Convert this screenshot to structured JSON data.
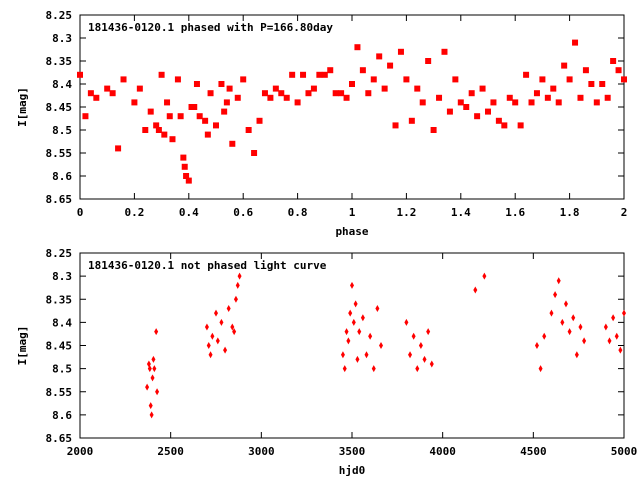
{
  "marker_color": "#ff0000",
  "chart_data": [
    {
      "type": "scatter",
      "title": "181436-0120.1 phased with P=166.80day",
      "xlabel": "phase",
      "ylabel": "I[mag]",
      "xlim": [
        0,
        2
      ],
      "ylim": [
        8.65,
        8.25
      ],
      "y_inverted": true,
      "grid": false,
      "legend": "none",
      "x_ticks": [
        "0",
        "0.2",
        "0.4",
        "0.6",
        "0.8",
        "1",
        "1.2",
        "1.4",
        "1.6",
        "1.8",
        "2"
      ],
      "y_ticks": [
        "8.25",
        "8.3",
        "8.35",
        "8.4",
        "8.45",
        "8.5",
        "8.55",
        "8.6",
        "8.65"
      ],
      "marker": "filled-square",
      "x": [
        0.0,
        0.02,
        0.04,
        0.06,
        0.1,
        0.12,
        0.14,
        0.16,
        0.2,
        0.22,
        0.24,
        0.26,
        0.28,
        0.29,
        0.3,
        0.31,
        0.32,
        0.33,
        0.34,
        0.36,
        0.37,
        0.38,
        0.385,
        0.39,
        0.4,
        0.41,
        0.42,
        0.43,
        0.44,
        0.46,
        0.47,
        0.48,
        0.5,
        0.52,
        0.53,
        0.54,
        0.55,
        0.56,
        0.58,
        0.6,
        0.62,
        0.64,
        0.66,
        0.68,
        0.7,
        0.72,
        0.74,
        0.76,
        0.78,
        0.8,
        0.82,
        0.84,
        0.86,
        0.88,
        0.9,
        0.92,
        0.94,
        0.96,
        0.98,
        1.0,
        1.02,
        1.04,
        1.06,
        1.08,
        1.1,
        1.12,
        1.14,
        1.16,
        1.18,
        1.2,
        1.22,
        1.24,
        1.26,
        1.28,
        1.3,
        1.32,
        1.34,
        1.36,
        1.38,
        1.4,
        1.42,
        1.44,
        1.46,
        1.48,
        1.5,
        1.52,
        1.54,
        1.56,
        1.58,
        1.6,
        1.62,
        1.64,
        1.66,
        1.68,
        1.7,
        1.72,
        1.74,
        1.76,
        1.78,
        1.8,
        1.82,
        1.84,
        1.86,
        1.88,
        1.9,
        1.92,
        1.94,
        1.96,
        1.98,
        2.0
      ],
      "y": [
        8.38,
        8.47,
        8.42,
        8.43,
        8.41,
        8.42,
        8.54,
        8.39,
        8.44,
        8.41,
        8.5,
        8.46,
        8.49,
        8.5,
        8.38,
        8.51,
        8.44,
        8.47,
        8.52,
        8.39,
        8.47,
        8.56,
        8.58,
        8.6,
        8.61,
        8.45,
        8.45,
        8.4,
        8.47,
        8.48,
        8.51,
        8.42,
        8.49,
        8.4,
        8.46,
        8.44,
        8.41,
        8.53,
        8.43,
        8.39,
        8.5,
        8.55,
        8.48,
        8.42,
        8.43,
        8.41,
        8.42,
        8.43,
        8.38,
        8.44,
        8.38,
        8.42,
        8.41,
        8.38,
        8.38,
        8.37,
        8.42,
        8.42,
        8.43,
        8.4,
        8.32,
        8.37,
        8.42,
        8.39,
        8.34,
        8.41,
        8.36,
        8.49,
        8.33,
        8.39,
        8.48,
        8.41,
        8.44,
        8.35,
        8.5,
        8.43,
        8.33,
        8.46,
        8.39,
        8.44,
        8.45,
        8.42,
        8.47,
        8.41,
        8.46,
        8.44,
        8.48,
        8.49,
        8.43,
        8.44,
        8.49,
        8.38,
        8.44,
        8.42,
        8.39,
        8.43,
        8.41,
        8.44,
        8.36,
        8.39,
        8.31,
        8.43,
        8.37,
        8.4,
        8.44,
        8.4,
        8.43,
        8.35,
        8.37,
        8.39
      ]
    },
    {
      "type": "scatter",
      "title": "181436-0120.1 not phased light curve",
      "xlabel": "hjd0",
      "ylabel": "I[mag]",
      "xlim": [
        2000,
        5000
      ],
      "ylim": [
        8.65,
        8.25
      ],
      "y_inverted": true,
      "grid": false,
      "legend": "none",
      "x_ticks": [
        "2000",
        "2500",
        "3000",
        "3500",
        "4000",
        "4500",
        "5000"
      ],
      "y_ticks": [
        "8.25",
        "8.3",
        "8.35",
        "8.4",
        "8.45",
        "8.5",
        "8.55",
        "8.6",
        "8.65"
      ],
      "marker": "filled-diamond",
      "x": [
        2370,
        2380,
        2385,
        2390,
        2395,
        2400,
        2405,
        2410,
        2420,
        2425,
        2700,
        2710,
        2720,
        2730,
        2750,
        2760,
        2780,
        2800,
        2820,
        2840,
        2850,
        2860,
        2870,
        2880,
        3450,
        3460,
        3470,
        3480,
        3490,
        3500,
        3510,
        3520,
        3530,
        3540,
        3560,
        3580,
        3600,
        3620,
        3640,
        3660,
        3800,
        3820,
        3840,
        3860,
        3880,
        3900,
        3920,
        3940,
        4180,
        4230,
        4520,
        4540,
        4560,
        4600,
        4620,
        4640,
        4660,
        4680,
        4700,
        4720,
        4740,
        4760,
        4780,
        4900,
        4920,
        4940,
        4960,
        4980,
        5000
      ],
      "y": [
        8.54,
        8.49,
        8.5,
        8.58,
        8.6,
        8.52,
        8.48,
        8.5,
        8.42,
        8.55,
        8.41,
        8.45,
        8.47,
        8.43,
        8.38,
        8.44,
        8.4,
        8.46,
        8.37,
        8.41,
        8.42,
        8.35,
        8.32,
        8.3,
        8.47,
        8.5,
        8.42,
        8.44,
        8.38,
        8.32,
        8.4,
        8.36,
        8.48,
        8.42,
        8.39,
        8.47,
        8.43,
        8.5,
        8.37,
        8.45,
        8.4,
        8.47,
        8.43,
        8.5,
        8.45,
        8.48,
        8.42,
        8.49,
        8.33,
        8.3,
        8.45,
        8.5,
        8.43,
        8.38,
        8.34,
        8.31,
        8.4,
        8.36,
        8.42,
        8.39,
        8.47,
        8.41,
        8.44,
        8.41,
        8.44,
        8.39,
        8.43,
        8.46,
        8.38
      ]
    }
  ]
}
